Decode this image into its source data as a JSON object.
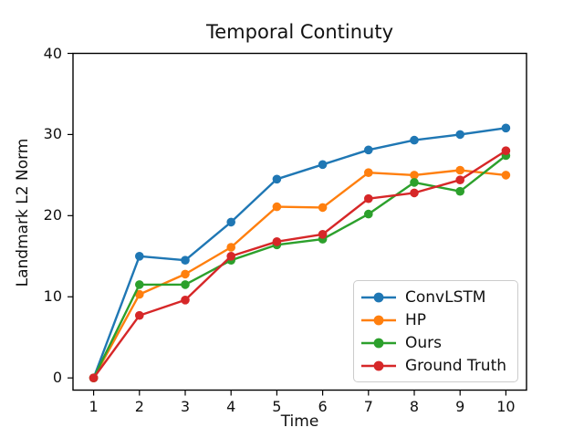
{
  "figure": {
    "background": "#ffffff",
    "text_color": "#111111",
    "frame_color": "#000000",
    "legend_border_color": "#cccccc"
  },
  "chart_data": {
    "type": "line",
    "title": "Temporal Continuty",
    "xlabel": "Time",
    "ylabel": "Landmark L2 Norm",
    "x": [
      1,
      2,
      3,
      4,
      5,
      6,
      7,
      8,
      9,
      10
    ],
    "xticks": [
      "1",
      "2",
      "3",
      "4",
      "5",
      "6",
      "7",
      "8",
      "9",
      "10"
    ],
    "yticks": [
      "0",
      "10",
      "20",
      "30",
      "40"
    ],
    "ytick_values": [
      0,
      10,
      20,
      30,
      40
    ],
    "xtick_values": [
      1,
      2,
      3,
      4,
      5,
      6,
      7,
      8,
      9,
      10
    ],
    "xlim": [
      0.55,
      10.45
    ],
    "ylim": [
      -1.5,
      40
    ],
    "grid": false,
    "legend_position": "lower-right-inside",
    "marker": "circle",
    "series": [
      {
        "name": "ConvLSTM",
        "color": "#1f77b4",
        "values": [
          0,
          15.0,
          14.5,
          19.2,
          24.5,
          26.3,
          28.1,
          29.3,
          30.0,
          30.8
        ]
      },
      {
        "name": "HP",
        "color": "#ff7f0e",
        "values": [
          0,
          10.3,
          12.8,
          16.1,
          21.1,
          21.0,
          25.3,
          25.0,
          25.6,
          25.0
        ]
      },
      {
        "name": "Ours",
        "color": "#2ca02c",
        "values": [
          0,
          11.5,
          11.5,
          14.5,
          16.4,
          17.1,
          20.2,
          24.1,
          23.0,
          27.4
        ]
      },
      {
        "name": "Ground Truth",
        "color": "#d62728",
        "values": [
          0,
          7.7,
          9.6,
          15.0,
          16.8,
          17.7,
          22.1,
          22.8,
          24.4,
          28.0
        ]
      }
    ]
  }
}
